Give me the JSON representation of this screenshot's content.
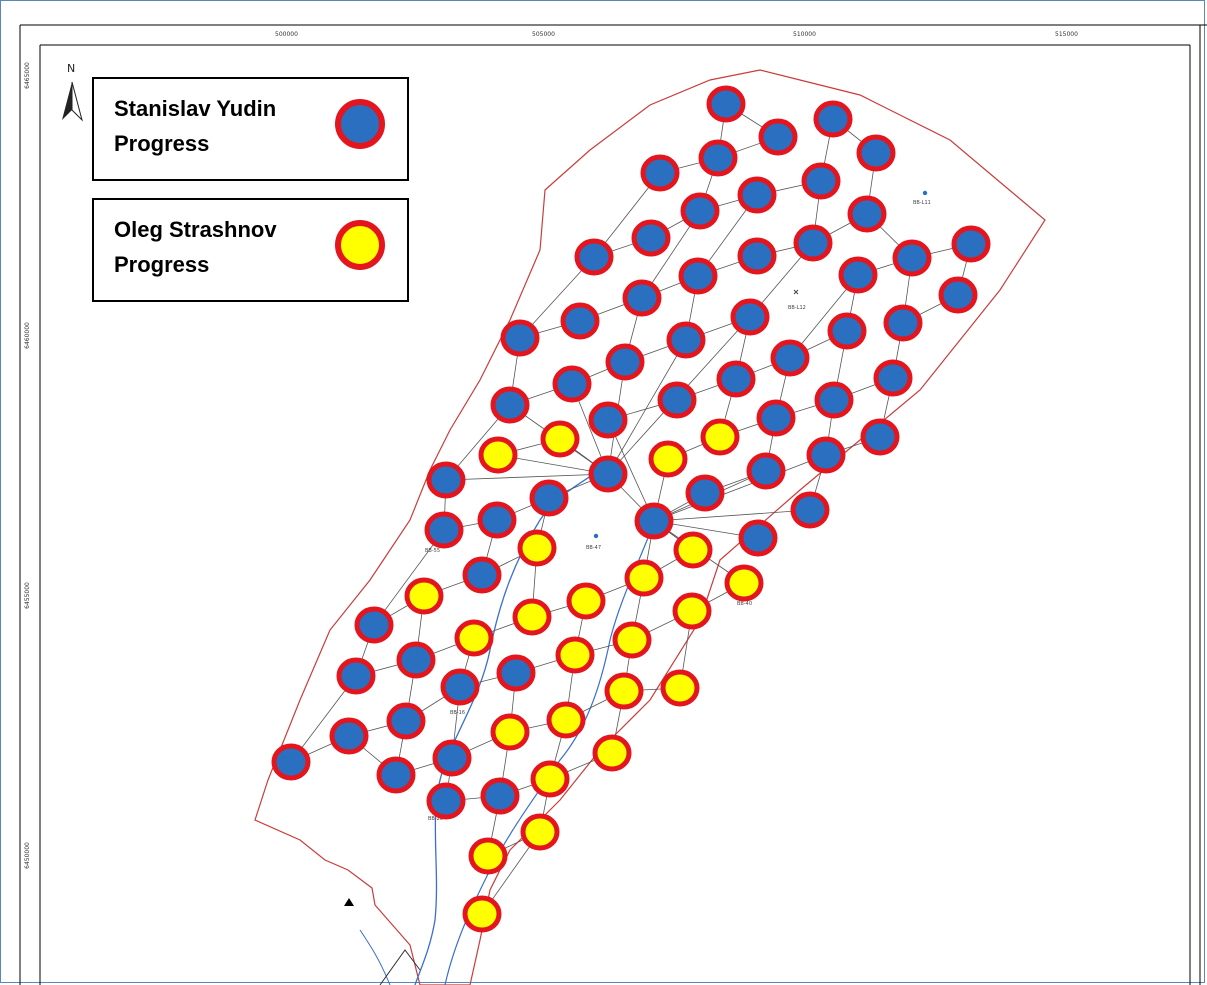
{
  "map": {
    "x_ticks": [
      "500000",
      "505000",
      "510000",
      "515000"
    ],
    "y_ticks": [
      "6465000",
      "6460000",
      "6455000",
      "6450000"
    ],
    "north_label": "N",
    "well_labels": [
      "BB-L11",
      "BB-L12",
      "BB-47",
      "BB-40",
      "BB-55",
      "BB-16",
      "BB-28"
    ]
  },
  "legend": {
    "items": [
      {
        "line1": "Stanislav Yudin",
        "line2": "Progress",
        "fill": "#2a6fc0",
        "stroke": "#e4151c"
      },
      {
        "line1": "Oleg Strashnov",
        "line2": "Progress",
        "fill": "#ffff00",
        "stroke": "#e4151c"
      }
    ]
  },
  "colors": {
    "boundary": "#cc3b3b",
    "river": "#3b6fcf",
    "connector": "#555555",
    "frame": "#5b87b8"
  },
  "points": {
    "stanislav_yudin_progress": 73,
    "oleg_strashnov_progress": 33
  }
}
